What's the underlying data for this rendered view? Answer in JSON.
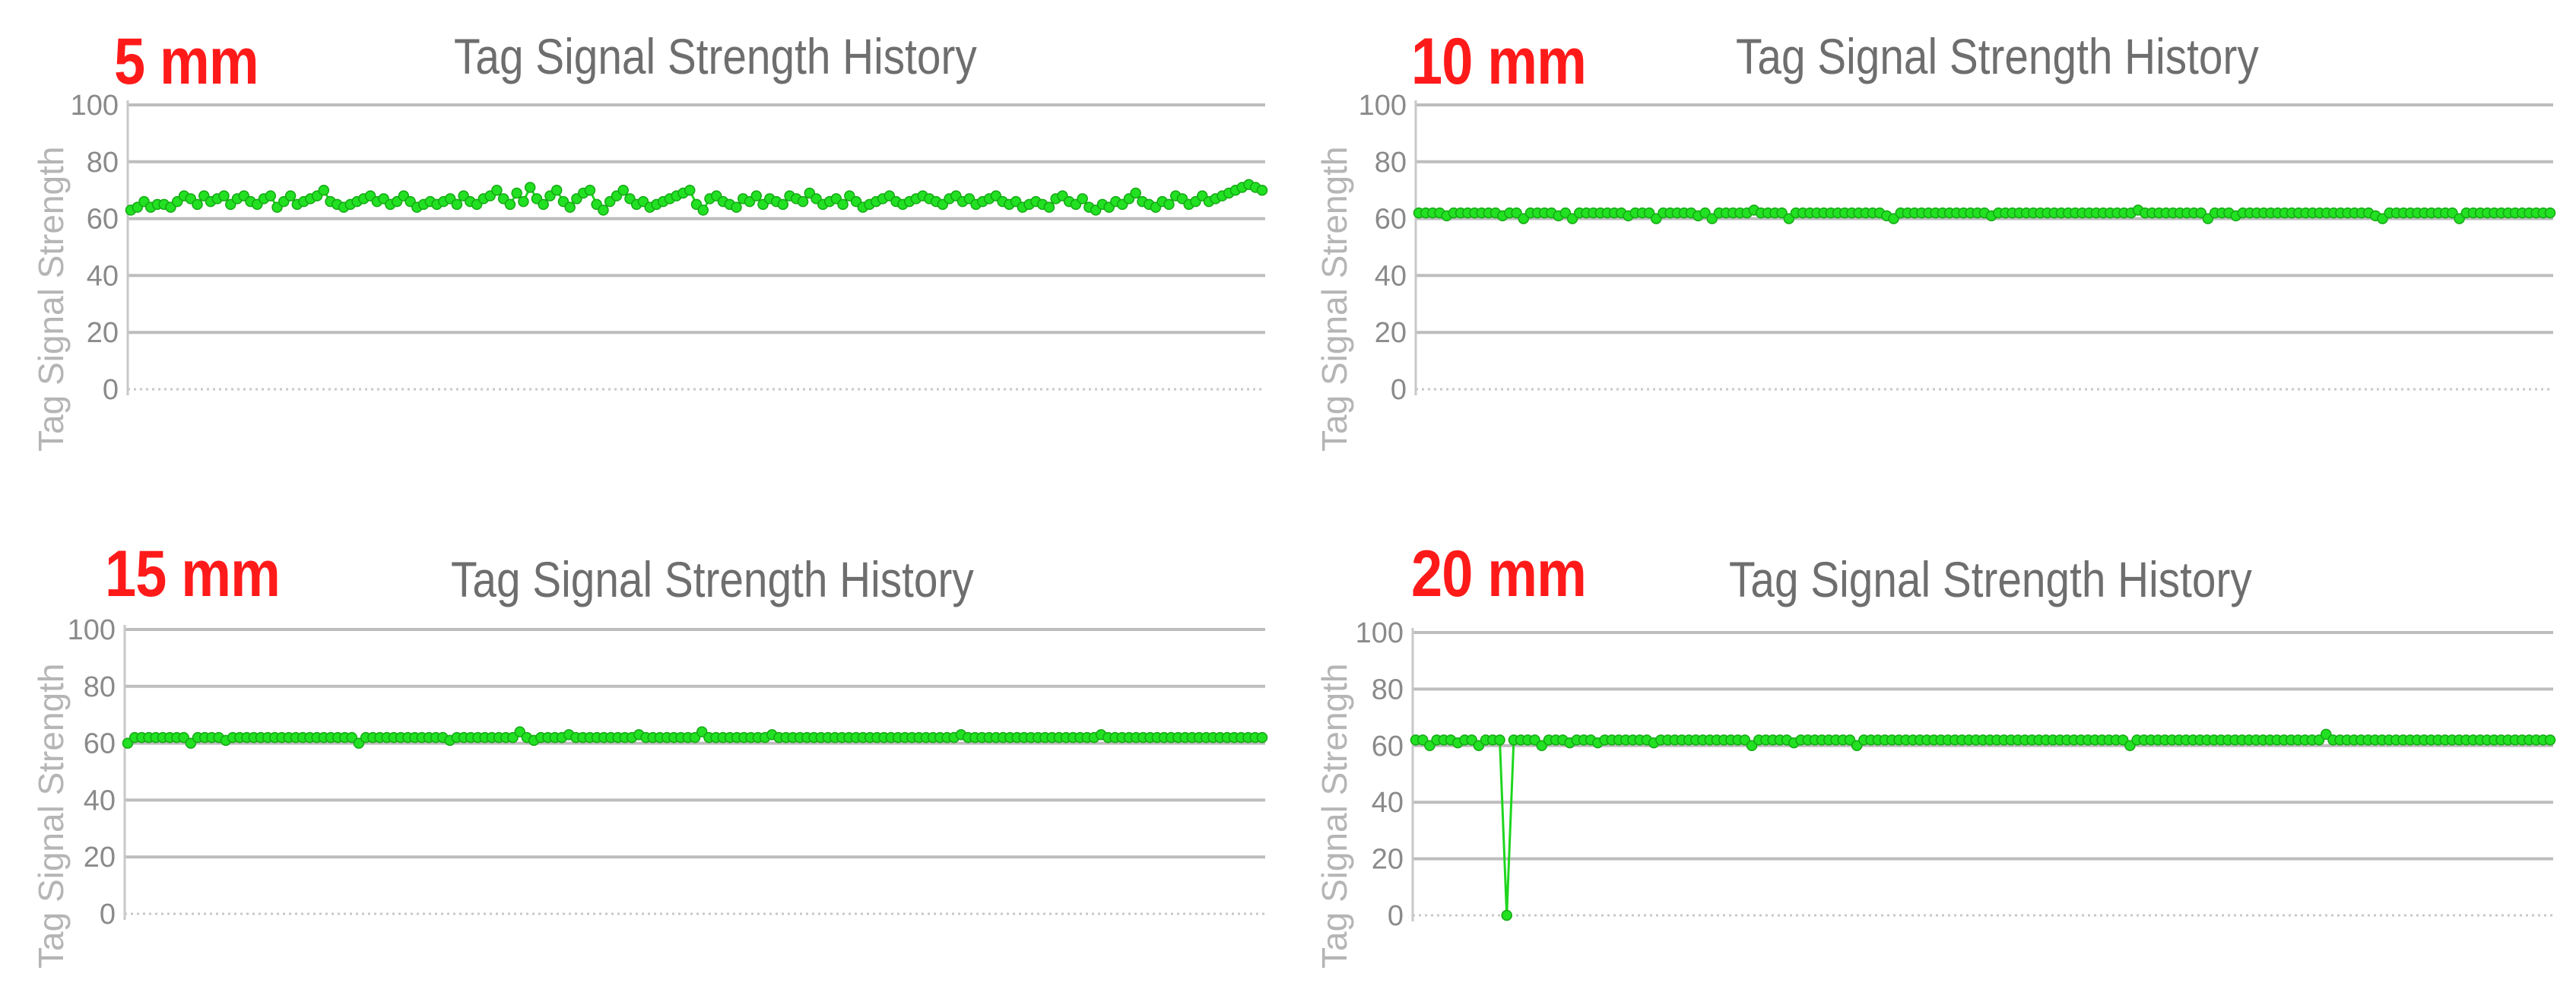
{
  "chart_data": [
    {
      "type": "line",
      "badge": "5 mm",
      "title": "Tag Signal Strength History",
      "ylabel": "Tag Signal Strength",
      "xlabel": "",
      "ylim": [
        0,
        100
      ],
      "yticks": [
        0,
        20,
        40,
        60,
        80,
        100
      ],
      "grid": true,
      "series": [
        {
          "values": [
            63,
            64,
            66,
            64,
            65,
            65,
            64,
            66,
            68,
            67,
            65,
            68,
            66,
            67,
            68,
            65,
            67,
            68,
            66,
            65,
            67,
            68,
            64,
            66,
            68,
            65,
            66,
            67,
            68,
            70,
            66,
            65,
            64,
            65,
            66,
            67,
            68,
            66,
            67,
            65,
            66,
            68,
            66,
            64,
            65,
            66,
            65,
            66,
            67,
            65,
            68,
            66,
            65,
            67,
            68,
            70,
            67,
            65,
            69,
            66,
            71,
            67,
            65,
            68,
            70,
            66,
            64,
            67,
            69,
            70,
            65,
            63,
            66,
            68,
            70,
            67,
            65,
            66,
            64,
            65,
            66,
            67,
            68,
            69,
            70,
            65,
            63,
            67,
            68,
            66,
            65,
            64,
            67,
            66,
            68,
            65,
            67,
            66,
            65,
            68,
            67,
            66,
            69,
            67,
            65,
            66,
            67,
            65,
            68,
            66,
            64,
            65,
            66,
            67,
            68,
            66,
            65,
            66,
            67,
            68,
            67,
            66,
            65,
            67,
            68,
            66,
            67,
            65,
            66,
            67,
            68,
            66,
            65,
            66,
            64,
            65,
            66,
            65,
            64,
            67,
            68,
            66,
            65,
            67,
            64,
            63,
            65,
            64,
            66,
            65,
            67,
            69,
            66,
            65,
            64,
            66,
            65,
            68,
            67,
            65,
            66,
            68,
            66,
            67,
            68,
            69,
            70,
            71,
            72,
            71,
            70
          ]
        }
      ]
    },
    {
      "type": "line",
      "badge": "10 mm",
      "title": "Tag Signal Strength History",
      "ylabel": "Tag Signal Strength",
      "xlabel": "",
      "ylim": [
        0,
        100
      ],
      "yticks": [
        0,
        20,
        40,
        60,
        80,
        100
      ],
      "grid": true,
      "series": [
        {
          "values": [
            62,
            62,
            62,
            62,
            61,
            62,
            62,
            62,
            62,
            62,
            62,
            62,
            61,
            62,
            62,
            60,
            62,
            62,
            62,
            62,
            61,
            62,
            60,
            62,
            62,
            62,
            62,
            62,
            62,
            62,
            61,
            62,
            62,
            62,
            60,
            62,
            62,
            62,
            62,
            62,
            61,
            62,
            60,
            62,
            62,
            62,
            62,
            62,
            63,
            62,
            62,
            62,
            62,
            60,
            62,
            62,
            62,
            62,
            62,
            62,
            62,
            62,
            62,
            62,
            62,
            62,
            62,
            61,
            60,
            62,
            62,
            62,
            62,
            62,
            62,
            62,
            62,
            62,
            62,
            62,
            62,
            62,
            61,
            62,
            62,
            62,
            62,
            62,
            62,
            62,
            62,
            62,
            62,
            62,
            62,
            62,
            62,
            62,
            62,
            62,
            62,
            62,
            62,
            63,
            62,
            62,
            62,
            62,
            62,
            62,
            62,
            62,
            62,
            60,
            62,
            62,
            62,
            61,
            62,
            62,
            62,
            62,
            62,
            62,
            62,
            62,
            62,
            62,
            62,
            62,
            62,
            62,
            62,
            62,
            62,
            62,
            62,
            61,
            60,
            62,
            62,
            62,
            62,
            62,
            62,
            62,
            62,
            62,
            62,
            60,
            62,
            62,
            62,
            62,
            62,
            62,
            62,
            62,
            62,
            62,
            62,
            62,
            62
          ]
        }
      ]
    },
    {
      "type": "line",
      "badge": "15 mm",
      "title": "Tag Signal Strength History",
      "ylabel": "Tag Signal Strength",
      "xlabel": "",
      "ylim": [
        0,
        100
      ],
      "yticks": [
        0,
        20,
        40,
        60,
        80,
        100
      ],
      "grid": true,
      "series": [
        {
          "values": [
            60,
            62,
            62,
            62,
            62,
            62,
            62,
            62,
            62,
            60,
            62,
            62,
            62,
            62,
            61,
            62,
            62,
            62,
            62,
            62,
            62,
            62,
            62,
            62,
            62,
            62,
            62,
            62,
            62,
            62,
            62,
            62,
            62,
            60,
            62,
            62,
            62,
            62,
            62,
            62,
            62,
            62,
            62,
            62,
            62,
            62,
            61,
            62,
            62,
            62,
            62,
            62,
            62,
            62,
            62,
            62,
            64,
            62,
            61,
            62,
            62,
            62,
            62,
            63,
            62,
            62,
            62,
            62,
            62,
            62,
            62,
            62,
            62,
            63,
            62,
            62,
            62,
            62,
            62,
            62,
            62,
            62,
            64,
            62,
            62,
            62,
            62,
            62,
            62,
            62,
            62,
            62,
            63,
            62,
            62,
            62,
            62,
            62,
            62,
            62,
            62,
            62,
            62,
            62,
            62,
            62,
            62,
            62,
            62,
            62,
            62,
            62,
            62,
            62,
            62,
            62,
            62,
            62,
            62,
            63,
            62,
            62,
            62,
            62,
            62,
            62,
            62,
            62,
            62,
            62,
            62,
            62,
            62,
            62,
            62,
            62,
            62,
            62,
            62,
            63,
            62,
            62,
            62,
            62,
            62,
            62,
            62,
            62,
            62,
            62,
            62,
            62,
            62,
            62,
            62,
            62,
            62,
            62,
            62,
            62,
            62,
            62,
            62
          ]
        }
      ]
    },
    {
      "type": "line",
      "badge": "20 mm",
      "title": "Tag Signal Strength History",
      "ylabel": "Tag Signal Strength",
      "xlabel": "",
      "ylim": [
        0,
        100
      ],
      "yticks": [
        0,
        20,
        40,
        60,
        80,
        100
      ],
      "grid": true,
      "series": [
        {
          "values": [
            62,
            62,
            60,
            62,
            62,
            62,
            61,
            62,
            62,
            60,
            62,
            62,
            62,
            0,
            62,
            62,
            62,
            62,
            60,
            62,
            62,
            62,
            61,
            62,
            62,
            62,
            61,
            62,
            62,
            62,
            62,
            62,
            62,
            62,
            61,
            62,
            62,
            62,
            62,
            62,
            62,
            62,
            62,
            62,
            62,
            62,
            62,
            62,
            60,
            62,
            62,
            62,
            62,
            62,
            61,
            62,
            62,
            62,
            62,
            62,
            62,
            62,
            62,
            60,
            62,
            62,
            62,
            62,
            62,
            62,
            62,
            62,
            62,
            62,
            62,
            62,
            62,
            62,
            62,
            62,
            62,
            62,
            62,
            62,
            62,
            62,
            62,
            62,
            62,
            62,
            62,
            62,
            62,
            62,
            62,
            62,
            62,
            62,
            62,
            62,
            62,
            62,
            60,
            62,
            62,
            62,
            62,
            62,
            62,
            62,
            62,
            62,
            62,
            62,
            62,
            62,
            62,
            62,
            62,
            62,
            62,
            62,
            62,
            62,
            62,
            62,
            62,
            62,
            62,
            62,
            64,
            62,
            62,
            62,
            62,
            62,
            62,
            62,
            62,
            62,
            62,
            62,
            62,
            62,
            62,
            62,
            62,
            62,
            62,
            62,
            62,
            62,
            62,
            62,
            62,
            62,
            62,
            62,
            62,
            62,
            62,
            62,
            62
          ]
        }
      ]
    }
  ],
  "style": {
    "line_color": "#1ed61e",
    "marker_color": "#22e022",
    "marker_edge": "#14a814",
    "grid_color": "#bdbdbd",
    "badge_color": "#ff1a1a",
    "title_color": "#6e6e6e",
    "ylabel_color": "#b5b5b5",
    "tick_color": "#8a8a8a"
  }
}
